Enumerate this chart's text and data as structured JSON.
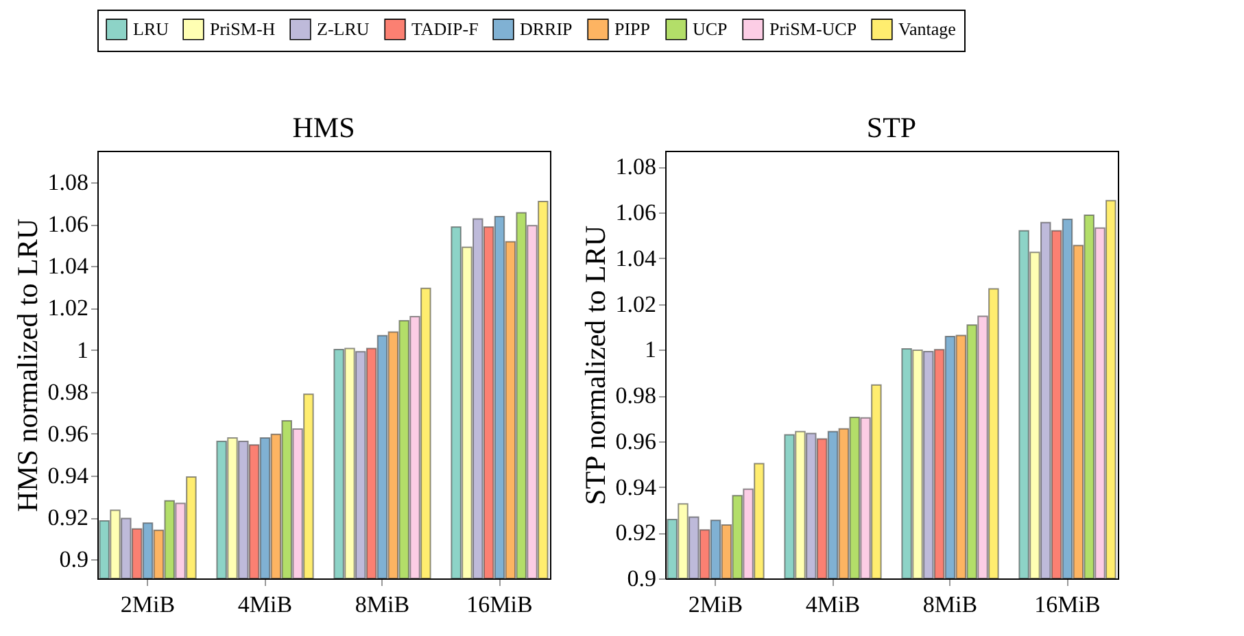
{
  "chart_data": [
    {
      "type": "bar",
      "title": "HMS",
      "ylabel": "HMS normalized to LRU",
      "categories": [
        "2MiB",
        "4MiB",
        "8MiB",
        "16MiB"
      ],
      "ylim": [
        0.891,
        1.095
      ],
      "yticks": [
        0.9,
        0.92,
        0.94,
        0.96,
        0.98,
        1,
        1.02,
        1.04,
        1.06,
        1.08
      ],
      "legend": "top",
      "series": [
        {
          "name": "LRU",
          "color": "#8dd3c7",
          "values": [
            0.9185,
            0.9564,
            1.0002,
            1.0586
          ]
        },
        {
          "name": "PriSM-H",
          "color": "#ffffb3",
          "values": [
            0.9235,
            0.958,
            1.0007,
            1.049
          ]
        },
        {
          "name": "Z-LRU",
          "color": "#bebada",
          "values": [
            0.9196,
            0.9564,
            0.9991,
            1.0625
          ]
        },
        {
          "name": "TADIP-F",
          "color": "#fb8072",
          "values": [
            0.9146,
            0.9547,
            1.0007,
            1.0586
          ]
        },
        {
          "name": "DRRIP",
          "color": "#80b1d3",
          "values": [
            0.9174,
            0.958,
            1.0068,
            1.0636
          ]
        },
        {
          "name": "PIPP",
          "color": "#fdb462",
          "values": [
            0.914,
            0.9597,
            1.0085,
            1.0516
          ]
        },
        {
          "name": "UCP",
          "color": "#b3de69",
          "values": [
            0.928,
            0.9662,
            1.0139,
            1.0654
          ]
        },
        {
          "name": "PriSM-UCP",
          "color": "#fccde5",
          "values": [
            0.9268,
            0.9623,
            1.0159,
            1.0593
          ]
        },
        {
          "name": "Vantage",
          "color": "#ffed6f",
          "values": [
            0.9394,
            0.9789,
            1.0294,
            1.0708
          ]
        }
      ]
    },
    {
      "type": "bar",
      "title": "STP",
      "ylabel": "STP normalized to LRU",
      "categories": [
        "2MiB",
        "4MiB",
        "8MiB",
        "16MiB"
      ],
      "ylim": [
        0.9,
        1.087
      ],
      "yticks": [
        0.9,
        0.92,
        0.94,
        0.96,
        0.98,
        1,
        1.02,
        1.04,
        1.06,
        1.08
      ],
      "legend": "top",
      "series": [
        {
          "name": "LRU",
          "color": "#8dd3c7",
          "values": [
            0.9258,
            0.9628,
            1.0004,
            1.052
          ]
        },
        {
          "name": "PriSM-H",
          "color": "#ffffb3",
          "values": [
            0.9326,
            0.9642,
            0.9998,
            1.0426
          ]
        },
        {
          "name": "Z-LRU",
          "color": "#bebada",
          "values": [
            0.9268,
            0.9634,
            0.9992,
            1.0556
          ]
        },
        {
          "name": "TADIP-F",
          "color": "#fb8072",
          "values": [
            0.9212,
            0.961,
            1.0,
            1.052
          ]
        },
        {
          "name": "DRRIP",
          "color": "#80b1d3",
          "values": [
            0.9254,
            0.9642,
            1.0058,
            1.057
          ]
        },
        {
          "name": "PIPP",
          "color": "#fdb462",
          "values": [
            0.9234,
            0.9654,
            1.0062,
            1.0456
          ]
        },
        {
          "name": "UCP",
          "color": "#b3de69",
          "values": [
            0.9362,
            0.9704,
            1.0108,
            1.0588
          ]
        },
        {
          "name": "PriSM-UCP",
          "color": "#fccde5",
          "values": [
            0.939,
            0.9702,
            1.0146,
            1.0532
          ]
        },
        {
          "name": "Vantage",
          "color": "#ffed6f",
          "values": [
            0.9502,
            0.9846,
            1.0266,
            1.0652
          ]
        }
      ]
    }
  ]
}
